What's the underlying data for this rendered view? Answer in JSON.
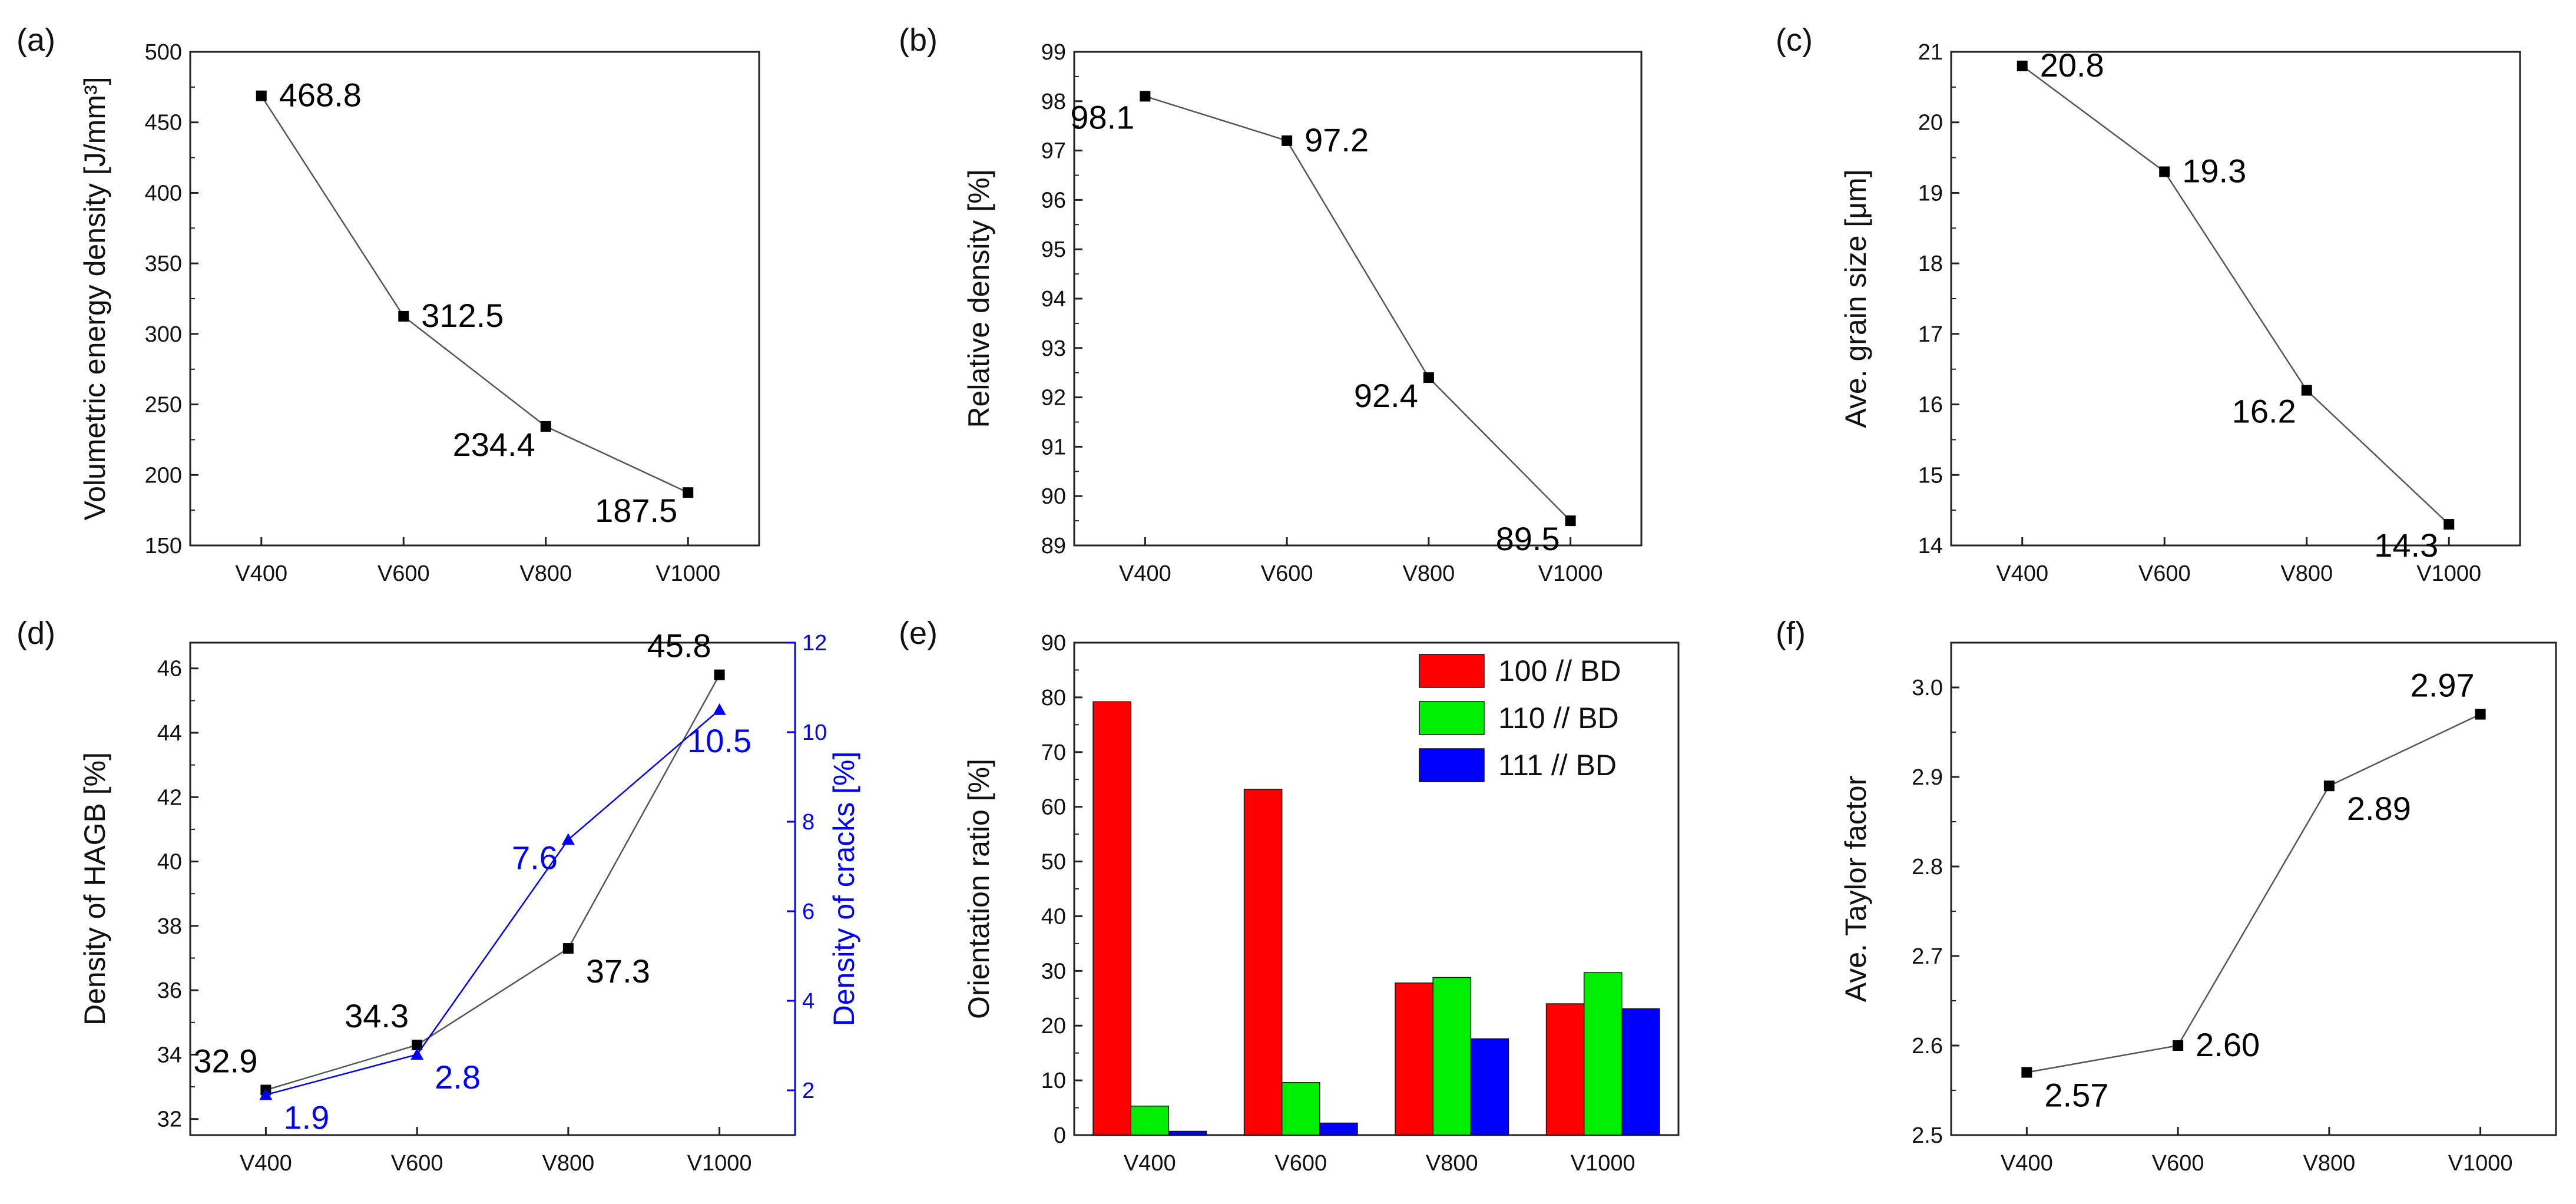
{
  "colors": {
    "line": "#555555",
    "marker": "#000000",
    "blue": "#0000ff",
    "red": "#ff0000",
    "green": "#00ee00",
    "text": "#111111"
  },
  "chart_data": [
    {
      "id": "a",
      "panel_label": "(a)",
      "type": "line",
      "categories": [
        "V400",
        "V600",
        "V800",
        "V1000"
      ],
      "ylabel": "Volumetric energy density [J/mm³]",
      "ylim": [
        150,
        500
      ],
      "yticks": [
        150,
        200,
        250,
        300,
        350,
        400,
        450,
        500
      ],
      "series": [
        {
          "name": "Volumetric energy density",
          "values": [
            468.8,
            312.5,
            234.4,
            187.5
          ],
          "labels": [
            "468.8",
            "312.5",
            "234.4",
            "187.5"
          ],
          "color": "#000000",
          "marker": "square",
          "label_pos": [
            "right",
            "right",
            "left",
            "left"
          ]
        }
      ]
    },
    {
      "id": "b",
      "panel_label": "(b)",
      "type": "line",
      "categories": [
        "V400",
        "V600",
        "V800",
        "V1000"
      ],
      "ylabel": "Relative density [%]",
      "ylim": [
        89,
        99
      ],
      "yticks": [
        89,
        90,
        91,
        92,
        93,
        94,
        95,
        96,
        97,
        98,
        99
      ],
      "series": [
        {
          "name": "Relative density",
          "values": [
            98.1,
            97.2,
            92.4,
            89.5
          ],
          "labels": [
            "98.1",
            "97.2",
            "92.4",
            "89.5"
          ],
          "color": "#000000",
          "marker": "square",
          "label_pos": [
            "left-below",
            "right",
            "left",
            "left"
          ]
        }
      ]
    },
    {
      "id": "c",
      "panel_label": "(c)",
      "type": "line",
      "categories": [
        "V400",
        "V600",
        "V800",
        "V1000"
      ],
      "ylabel": "Ave. grain size [μm]",
      "ylim": [
        14,
        21
      ],
      "yticks": [
        14,
        15,
        16,
        17,
        18,
        19,
        20,
        21
      ],
      "series": [
        {
          "name": "Ave. grain size",
          "values": [
            20.8,
            19.3,
            16.2,
            14.3
          ],
          "labels": [
            "20.8",
            "19.3",
            "16.2",
            "14.3"
          ],
          "color": "#000000",
          "marker": "square",
          "label_pos": [
            "right",
            "right",
            "left-below",
            "left-below"
          ]
        }
      ]
    },
    {
      "id": "d",
      "panel_label": "(d)",
      "type": "line",
      "categories": [
        "V400",
        "V600",
        "V800",
        "V1000"
      ],
      "ylabel": "Density of HAGB [%]",
      "ylim": [
        31.5,
        46.8
      ],
      "yticks": [
        32,
        34,
        36,
        38,
        40,
        42,
        44,
        46
      ],
      "y2label": "Density of cracks [%]",
      "y2lim": [
        1,
        12
      ],
      "y2ticks": [
        2,
        4,
        6,
        8,
        10,
        12
      ],
      "series": [
        {
          "name": "Density of HAGB",
          "axis": "left",
          "values": [
            32.9,
            34.3,
            37.3,
            45.8
          ],
          "labels": [
            "32.9",
            "34.3",
            "37.3",
            "45.8"
          ],
          "color": "#000000",
          "marker": "square",
          "label_pos": [
            "left-above",
            "left-above",
            "right-below",
            "left-above"
          ]
        },
        {
          "name": "Density of cracks",
          "axis": "right",
          "values": [
            1.9,
            2.8,
            7.6,
            10.5
          ],
          "labels": [
            "1.9",
            "2.8",
            "7.6",
            "10.5"
          ],
          "color": "#0000ff",
          "marker": "triangle",
          "label_pos": [
            "right-below",
            "right-below",
            "left",
            "below"
          ]
        }
      ]
    },
    {
      "id": "e",
      "panel_label": "(e)",
      "type": "bar",
      "categories": [
        "V400",
        "V600",
        "V800",
        "V1000"
      ],
      "ylabel": "Orientation ratio [%]",
      "ylim": [
        0,
        90
      ],
      "yticks": [
        0,
        10,
        20,
        30,
        40,
        50,
        60,
        70,
        80,
        90
      ],
      "legend_position": "top-right",
      "series": [
        {
          "name": "100 // BD",
          "values": [
            79.2,
            63.2,
            27.8,
            24.0
          ],
          "color": "#ff0000"
        },
        {
          "name": "110 // BD",
          "values": [
            5.3,
            9.6,
            28.8,
            29.7
          ],
          "color": "#00ee00"
        },
        {
          "name": "111 // BD",
          "values": [
            0.7,
            2.2,
            17.6,
            23.1
          ],
          "color": "#0000ff"
        }
      ]
    },
    {
      "id": "f",
      "panel_label": "(f)",
      "type": "line",
      "categories": [
        "V400",
        "V600",
        "V800",
        "V1000"
      ],
      "ylabel": "Ave. Taylor factor",
      "ylim": [
        2.5,
        3.05
      ],
      "yticks": [
        2.5,
        2.6,
        2.7,
        2.8,
        2.9,
        3.0
      ],
      "ytick_labels": [
        "2.5",
        "2.6",
        "2.7",
        "2.8",
        "2.9",
        "3.0"
      ],
      "series": [
        {
          "name": "Ave. Taylor factor",
          "values": [
            2.57,
            2.6,
            2.89,
            2.97
          ],
          "labels": [
            "2.57",
            "2.60",
            "2.89",
            "2.97"
          ],
          "color": "#000000",
          "marker": "square",
          "label_pos": [
            "right-below",
            "right",
            "right-below",
            "above-left"
          ]
        }
      ]
    }
  ]
}
